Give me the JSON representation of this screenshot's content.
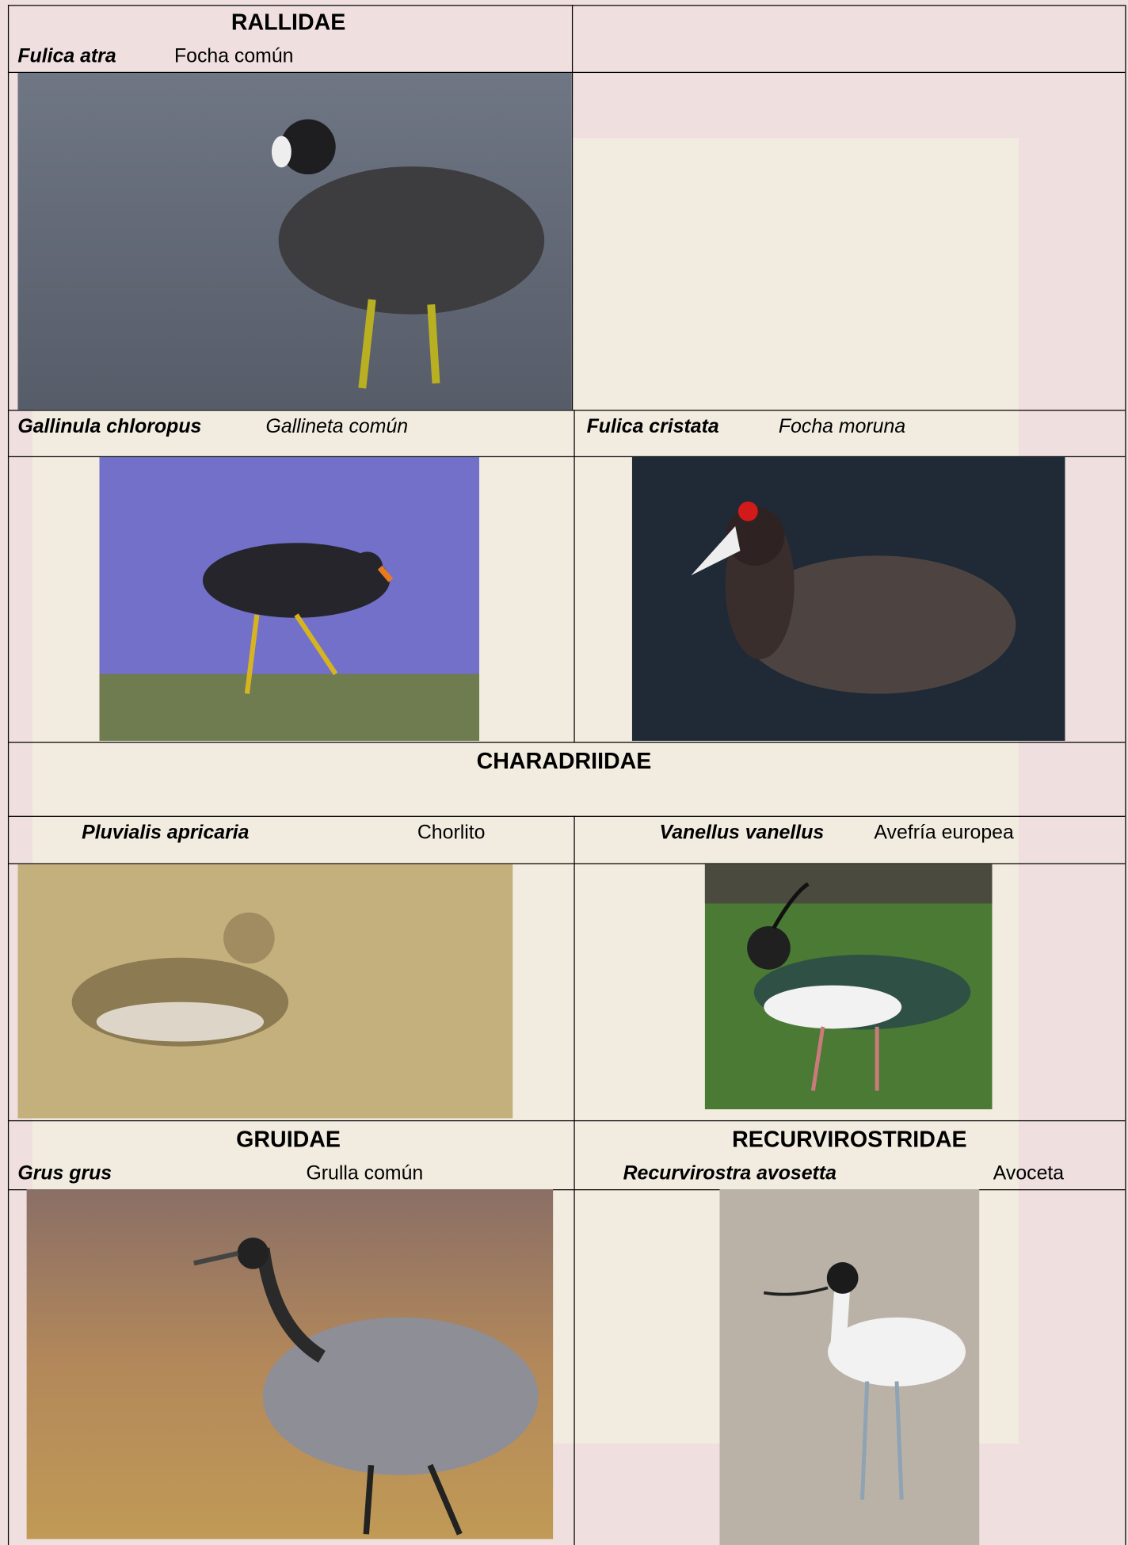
{
  "families": [
    "RALLIDAE",
    "CHARADRIIDAE",
    "GRUIDAE",
    "RECURVIROSTRIDAE"
  ],
  "species": [
    {
      "scientific": "Fulica atra",
      "common": "Focha común"
    },
    {
      "scientific": "Gallinula chloropus",
      "common": "Gallineta común"
    },
    {
      "scientific": "Fulica cristata",
      "common": "Focha moruna"
    },
    {
      "scientific": "Pluvialis apricaria",
      "common": "Chorlito"
    },
    {
      "scientific": "Vanellus vanellus",
      "common": "Avefría europea"
    },
    {
      "scientific": "Grus grus",
      "common": "Grulla común"
    },
    {
      "scientific": "Recurvirostra avosetta",
      "common": "Avoceta"
    }
  ]
}
